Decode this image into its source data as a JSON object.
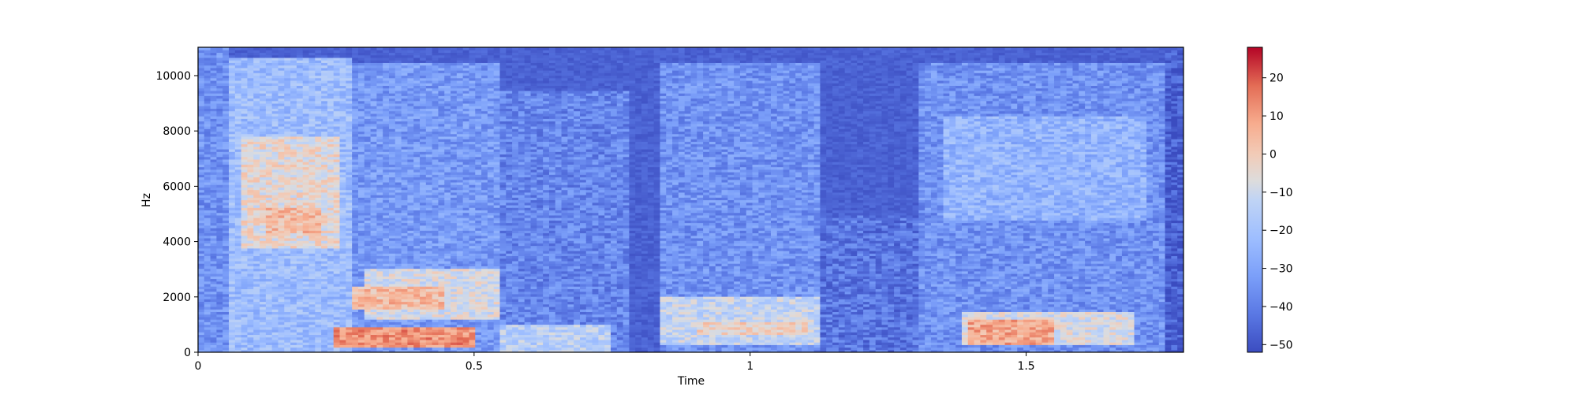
{
  "chart_data": {
    "type": "heatmap",
    "subtype": "spectrogram",
    "title": "",
    "xlabel": "Time",
    "ylabel": "Hz",
    "xlim": [
      0,
      1.785
    ],
    "ylim": [
      0,
      11025
    ],
    "x_ticks": [
      0,
      0.5,
      1,
      1.5
    ],
    "x_tick_labels": [
      "0",
      "0.5",
      "1",
      "1.5"
    ],
    "y_ticks": [
      0,
      2000,
      4000,
      6000,
      8000,
      10000
    ],
    "y_tick_labels": [
      "0",
      "2000",
      "4000",
      "6000",
      "8000",
      "10000"
    ],
    "colormap": "coolwarm",
    "colormap_low": "#3b4cc0",
    "colormap_mid": "#dddddd",
    "colormap_high": "#b40426",
    "colorbar": {
      "range": [
        -52,
        28
      ],
      "ticks": [
        20,
        10,
        0,
        -10,
        -20,
        -30,
        -40,
        -50
      ],
      "tick_labels": [
        "20",
        "10",
        "0",
        "−10",
        "−20",
        "−30",
        "−40",
        "−50"
      ]
    },
    "energy_regions": [
      {
        "t": [
          0.0,
          0.06
        ],
        "f": [
          0,
          11025
        ],
        "db": -35
      },
      {
        "t": [
          0.06,
          0.28
        ],
        "f": [
          0,
          10700
        ],
        "db": -22
      },
      {
        "t": [
          0.08,
          0.26
        ],
        "f": [
          3800,
          7800
        ],
        "db": -5
      },
      {
        "t": [
          0.12,
          0.22
        ],
        "f": [
          4300,
          5200
        ],
        "db": 4
      },
      {
        "t": [
          0.28,
          0.55
        ],
        "f": [
          0,
          10500
        ],
        "db": -33
      },
      {
        "t": [
          0.3,
          0.55
        ],
        "f": [
          1200,
          3000
        ],
        "db": -8
      },
      {
        "t": [
          0.25,
          0.5
        ],
        "f": [
          200,
          900
        ],
        "db": 12
      },
      {
        "t": [
          0.28,
          0.45
        ],
        "f": [
          1600,
          2400
        ],
        "db": 4
      },
      {
        "t": [
          0.55,
          0.78
        ],
        "f": [
          0,
          9500
        ],
        "db": -38
      },
      {
        "t": [
          0.55,
          0.75
        ],
        "f": [
          0,
          1000
        ],
        "db": -15
      },
      {
        "t": [
          0.78,
          0.84
        ],
        "f": [
          0,
          11025
        ],
        "db": -50
      },
      {
        "t": [
          0.84,
          1.13
        ],
        "f": [
          0,
          10500
        ],
        "db": -35
      },
      {
        "t": [
          0.84,
          1.13
        ],
        "f": [
          300,
          2000
        ],
        "db": -12
      },
      {
        "t": [
          0.9,
          1.1
        ],
        "f": [
          600,
          1100
        ],
        "db": -2
      },
      {
        "t": [
          1.13,
          1.3
        ],
        "f": [
          0,
          5000
        ],
        "db": -42
      },
      {
        "t": [
          1.3,
          1.75
        ],
        "f": [
          0,
          10500
        ],
        "db": -35
      },
      {
        "t": [
          1.35,
          1.72
        ],
        "f": [
          4800,
          8500
        ],
        "db": -25
      },
      {
        "t": [
          1.38,
          1.7
        ],
        "f": [
          300,
          1500
        ],
        "db": -8
      },
      {
        "t": [
          1.4,
          1.55
        ],
        "f": [
          300,
          1200
        ],
        "db": 8
      },
      {
        "t": [
          1.75,
          1.785
        ],
        "f": [
          0,
          11025
        ],
        "db": -48
      }
    ]
  }
}
